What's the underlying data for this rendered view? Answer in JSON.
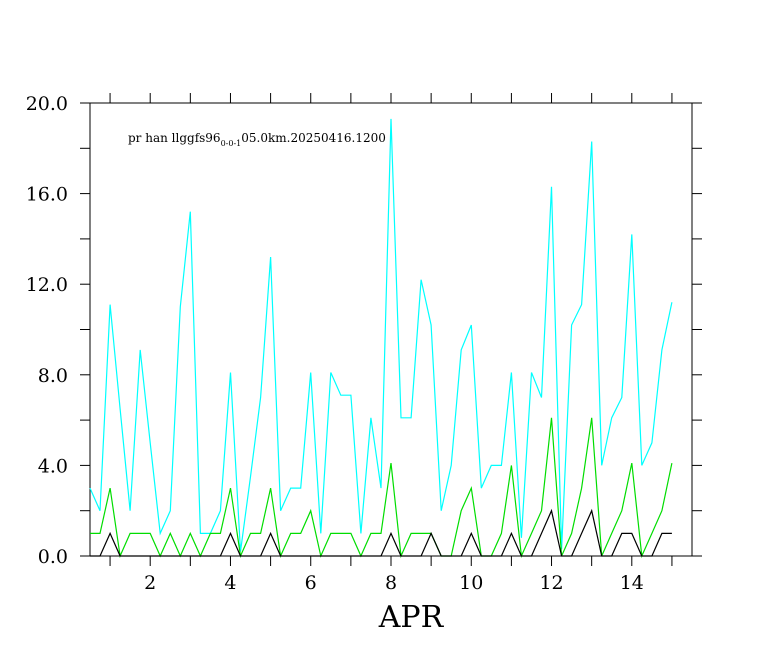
{
  "chart_data": {
    "type": "line",
    "title": "pr han llggfs96",
    "title_subscript": "0-0-1",
    "title_suffix": "05.0km.20250416.1200",
    "xlabel": "APR",
    "ylabel": "",
    "xlim": [
      0.5,
      15.5
    ],
    "ylim": [
      0,
      20
    ],
    "y_ticks": [
      "0.0",
      "4.0",
      "8.0",
      "12.0",
      "16.0",
      "20.0"
    ],
    "y_tick_values": [
      0,
      4,
      8,
      12,
      16,
      20
    ],
    "x_ticks": [
      "2",
      "4",
      "6",
      "8",
      "10",
      "12",
      "14"
    ],
    "x_tick_values": [
      2,
      4,
      6,
      8,
      10,
      12,
      14
    ],
    "grid": false,
    "x_step": 0.25,
    "x_start": 0.5,
    "series": [
      {
        "color": "#00ffff",
        "values": [
          3,
          2,
          11.1,
          6.5,
          2,
          9.1,
          5,
          1,
          2,
          11,
          15.2,
          1,
          1,
          2,
          8.1,
          0.2,
          3.5,
          7,
          13.2,
          2,
          3,
          3,
          8.1,
          1,
          8.1,
          7.1,
          7.1,
          1,
          6.1,
          3,
          19.3,
          6.1,
          6.1,
          12.2,
          10.2,
          2,
          4,
          9.1,
          10.2,
          3,
          4,
          4,
          8.1,
          0.8,
          8.1,
          7,
          16.3,
          0.3,
          10.2,
          11.1,
          18.3,
          4,
          6.1,
          7,
          14.2,
          4,
          5,
          9.1,
          11.2
        ]
      },
      {
        "color": "#00dd00",
        "values": [
          1,
          1,
          3,
          0,
          1,
          1,
          1,
          0,
          1,
          0,
          1,
          0,
          1,
          1,
          3,
          0,
          1,
          1,
          3,
          0,
          1,
          1,
          2,
          0,
          1,
          1,
          1,
          0,
          1,
          1,
          4.1,
          0,
          1,
          1,
          1,
          0,
          0,
          2,
          3,
          0,
          0,
          1,
          4,
          0,
          1,
          2,
          6.1,
          0,
          1,
          3,
          6.1,
          0,
          1,
          2,
          4.1,
          0,
          1,
          2,
          4.1
        ]
      },
      {
        "color": "#000000",
        "values": [
          0,
          0,
          1,
          0,
          0,
          0,
          0,
          0,
          0,
          0,
          0,
          0,
          0,
          0,
          1,
          0,
          0,
          0,
          1,
          0,
          0,
          0,
          0,
          0,
          0,
          0,
          0,
          0,
          0,
          0,
          1,
          0,
          0,
          0,
          1,
          0,
          0,
          0,
          1,
          0,
          0,
          0,
          1,
          0,
          0,
          1,
          2,
          0,
          0,
          1,
          2,
          0,
          0,
          1,
          1,
          0,
          0,
          1,
          1
        ]
      }
    ]
  }
}
